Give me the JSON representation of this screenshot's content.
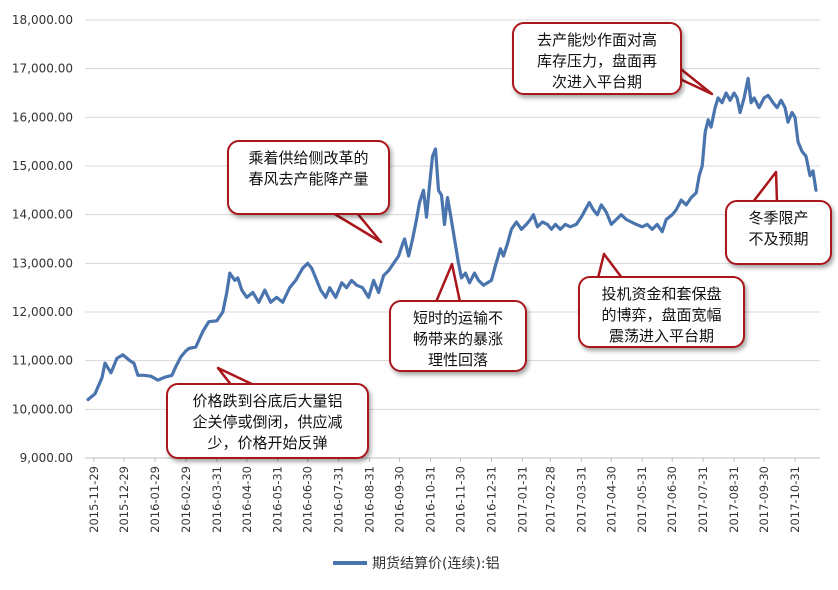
{
  "chart_data": {
    "type": "line",
    "title": "",
    "xlabel": "",
    "ylabel": "",
    "ylim": [
      9000,
      18000
    ],
    "yticks": [
      "9,000.00",
      "10,000.00",
      "11,000.00",
      "12,000.00",
      "13,000.00",
      "14,000.00",
      "15,000.00",
      "16,000.00",
      "17,000.00",
      "18,000.00"
    ],
    "x_ticks": [
      "2015-11-29",
      "2015-12-29",
      "2016-01-29",
      "2016-02-29",
      "2016-03-31",
      "2016-04-30",
      "2016-05-31",
      "2016-06-30",
      "2016-07-31",
      "2016-08-31",
      "2016-09-30",
      "2016-10-31",
      "2016-11-30",
      "2016-12-31",
      "2017-01-31",
      "2017-02-28",
      "2017-03-31",
      "2017-04-30",
      "2017-05-31",
      "2017-06-30",
      "2017-07-31",
      "2017-08-31",
      "2017-09-30",
      "2017-10-31"
    ],
    "grid": "horizontal",
    "legend_position": "bottom",
    "series": [
      {
        "name": "期货结算价(连续):铝",
        "color": "#4a74ad",
        "points": [
          [
            "2015-11-23",
            10200
          ],
          [
            "2015-11-30",
            10320
          ],
          [
            "2015-12-07",
            10650
          ],
          [
            "2015-12-10",
            10950
          ],
          [
            "2015-12-16",
            10750
          ],
          [
            "2015-12-22",
            11050
          ],
          [
            "2015-12-28",
            11120
          ],
          [
            "2016-01-04",
            11000
          ],
          [
            "2016-01-08",
            10950
          ],
          [
            "2016-01-12",
            10700
          ],
          [
            "2016-01-18",
            10700
          ],
          [
            "2016-01-25",
            10680
          ],
          [
            "2016-02-01",
            10600
          ],
          [
            "2016-02-08",
            10660
          ],
          [
            "2016-02-15",
            10700
          ],
          [
            "2016-02-19",
            10880
          ],
          [
            "2016-02-24",
            11080
          ],
          [
            "2016-02-29",
            11200
          ],
          [
            "2016-03-03",
            11250
          ],
          [
            "2016-03-10",
            11280
          ],
          [
            "2016-03-17",
            11600
          ],
          [
            "2016-03-23",
            11800
          ],
          [
            "2016-03-31",
            11820
          ],
          [
            "2016-04-06",
            12000
          ],
          [
            "2016-04-10",
            12400
          ],
          [
            "2016-04-13",
            12800
          ],
          [
            "2016-04-18",
            12650
          ],
          [
            "2016-04-21",
            12700
          ],
          [
            "2016-04-25",
            12450
          ],
          [
            "2016-04-30",
            12300
          ],
          [
            "2016-05-06",
            12400
          ],
          [
            "2016-05-12",
            12200
          ],
          [
            "2016-05-18",
            12450
          ],
          [
            "2016-05-24",
            12200
          ],
          [
            "2016-05-30",
            12300
          ],
          [
            "2016-06-05",
            12200
          ],
          [
            "2016-06-12",
            12500
          ],
          [
            "2016-06-18",
            12650
          ],
          [
            "2016-06-25",
            12900
          ],
          [
            "2016-06-30",
            13000
          ],
          [
            "2016-07-04",
            12900
          ],
          [
            "2016-07-08",
            12700
          ],
          [
            "2016-07-13",
            12450
          ],
          [
            "2016-07-18",
            12300
          ],
          [
            "2016-07-22",
            12500
          ],
          [
            "2016-07-28",
            12300
          ],
          [
            "2016-08-03",
            12600
          ],
          [
            "2016-08-08",
            12500
          ],
          [
            "2016-08-13",
            12650
          ],
          [
            "2016-08-18",
            12550
          ],
          [
            "2016-08-24",
            12500
          ],
          [
            "2016-08-30",
            12300
          ],
          [
            "2016-09-04",
            12650
          ],
          [
            "2016-09-09",
            12400
          ],
          [
            "2016-09-14",
            12750
          ],
          [
            "2016-09-19",
            12850
          ],
          [
            "2016-09-24",
            13000
          ],
          [
            "2016-09-29",
            13150
          ],
          [
            "2016-10-03",
            13400
          ],
          [
            "2016-10-05",
            13500
          ],
          [
            "2016-10-09",
            13150
          ],
          [
            "2016-10-13",
            13500
          ],
          [
            "2016-10-17",
            13900
          ],
          [
            "2016-10-20",
            14250
          ],
          [
            "2016-10-24",
            14500
          ],
          [
            "2016-10-27",
            13950
          ],
          [
            "2016-10-30",
            14600
          ],
          [
            "2016-11-02",
            15200
          ],
          [
            "2016-11-05",
            15350
          ],
          [
            "2016-11-08",
            14500
          ],
          [
            "2016-11-11",
            14400
          ],
          [
            "2016-11-14",
            13800
          ],
          [
            "2016-11-17",
            14350
          ],
          [
            "2016-11-20",
            14000
          ],
          [
            "2016-11-24",
            13500
          ],
          [
            "2016-11-28",
            13000
          ],
          [
            "2016-12-01",
            12700
          ],
          [
            "2016-12-05",
            12800
          ],
          [
            "2016-12-09",
            12600
          ],
          [
            "2016-12-14",
            12800
          ],
          [
            "2016-12-18",
            12650
          ],
          [
            "2016-12-23",
            12550
          ],
          [
            "2016-12-27",
            12600
          ],
          [
            "2016-12-31",
            12650
          ],
          [
            "2017-01-04",
            12950
          ],
          [
            "2017-01-09",
            13300
          ],
          [
            "2017-01-12",
            13150
          ],
          [
            "2017-01-16",
            13400
          ],
          [
            "2017-01-20",
            13700
          ],
          [
            "2017-01-25",
            13850
          ],
          [
            "2017-01-30",
            13700
          ],
          [
            "2017-02-04",
            13800
          ],
          [
            "2017-02-08",
            13900
          ],
          [
            "2017-02-11",
            14000
          ],
          [
            "2017-02-15",
            13750
          ],
          [
            "2017-02-20",
            13850
          ],
          [
            "2017-02-25",
            13800
          ],
          [
            "2017-03-01",
            13700
          ],
          [
            "2017-03-05",
            13800
          ],
          [
            "2017-03-10",
            13700
          ],
          [
            "2017-03-15",
            13800
          ],
          [
            "2017-03-20",
            13750
          ],
          [
            "2017-03-26",
            13800
          ],
          [
            "2017-03-31",
            13950
          ],
          [
            "2017-04-04",
            14100
          ],
          [
            "2017-04-08",
            14250
          ],
          [
            "2017-04-12",
            14100
          ],
          [
            "2017-04-16",
            14000
          ],
          [
            "2017-04-20",
            14200
          ],
          [
            "2017-04-25",
            14050
          ],
          [
            "2017-04-30",
            13800
          ],
          [
            "2017-05-05",
            13900
          ],
          [
            "2017-05-10",
            14000
          ],
          [
            "2017-05-15",
            13900
          ],
          [
            "2017-05-20",
            13850
          ],
          [
            "2017-05-25",
            13800
          ],
          [
            "2017-05-31",
            13750
          ],
          [
            "2017-06-05",
            13800
          ],
          [
            "2017-06-10",
            13700
          ],
          [
            "2017-06-15",
            13800
          ],
          [
            "2017-06-20",
            13650
          ],
          [
            "2017-06-24",
            13900
          ],
          [
            "2017-06-30",
            14000
          ],
          [
            "2017-07-04",
            14100
          ],
          [
            "2017-07-09",
            14300
          ],
          [
            "2017-07-14",
            14200
          ],
          [
            "2017-07-19",
            14350
          ],
          [
            "2017-07-24",
            14450
          ],
          [
            "2017-07-27",
            14800
          ],
          [
            "2017-07-30",
            15000
          ],
          [
            "2017-08-02",
            15700
          ],
          [
            "2017-08-05",
            15950
          ],
          [
            "2017-08-08",
            15800
          ],
          [
            "2017-08-12",
            16200
          ],
          [
            "2017-08-15",
            16400
          ],
          [
            "2017-08-19",
            16300
          ],
          [
            "2017-08-23",
            16500
          ],
          [
            "2017-08-27",
            16350
          ],
          [
            "2017-08-31",
            16500
          ],
          [
            "2017-09-03",
            16400
          ],
          [
            "2017-09-06",
            16100
          ],
          [
            "2017-09-10",
            16400
          ],
          [
            "2017-09-14",
            16800
          ],
          [
            "2017-09-17",
            16300
          ],
          [
            "2017-09-20",
            16400
          ],
          [
            "2017-09-25",
            16200
          ],
          [
            "2017-09-30",
            16400
          ],
          [
            "2017-10-04",
            16450
          ],
          [
            "2017-10-09",
            16300
          ],
          [
            "2017-10-13",
            16200
          ],
          [
            "2017-10-17",
            16350
          ],
          [
            "2017-10-21",
            16200
          ],
          [
            "2017-10-24",
            15900
          ],
          [
            "2017-10-28",
            16100
          ],
          [
            "2017-10-31",
            16000
          ],
          [
            "2017-11-03",
            15500
          ],
          [
            "2017-11-07",
            15300
          ],
          [
            "2017-11-11",
            15200
          ],
          [
            "2017-11-15",
            14800
          ],
          [
            "2017-11-18",
            14900
          ],
          [
            "2017-11-21",
            14500
          ]
        ]
      }
    ],
    "annotations": [
      "价格跌到谷底后大量铝\n企关停或倒闭，供应减\n少，价格开始反弹",
      "乘着供给侧改革的\n春风去产能降产量",
      "短时的运输不\n畅带来的暴涨\n理性回落",
      "去产能炒作面对高\n库存压力，盘面再\n次进入平台期",
      "投机资金和套保盘\n的博弈，盘面宽幅\n震荡进入平台期",
      "冬季限产\n不及预期"
    ]
  }
}
